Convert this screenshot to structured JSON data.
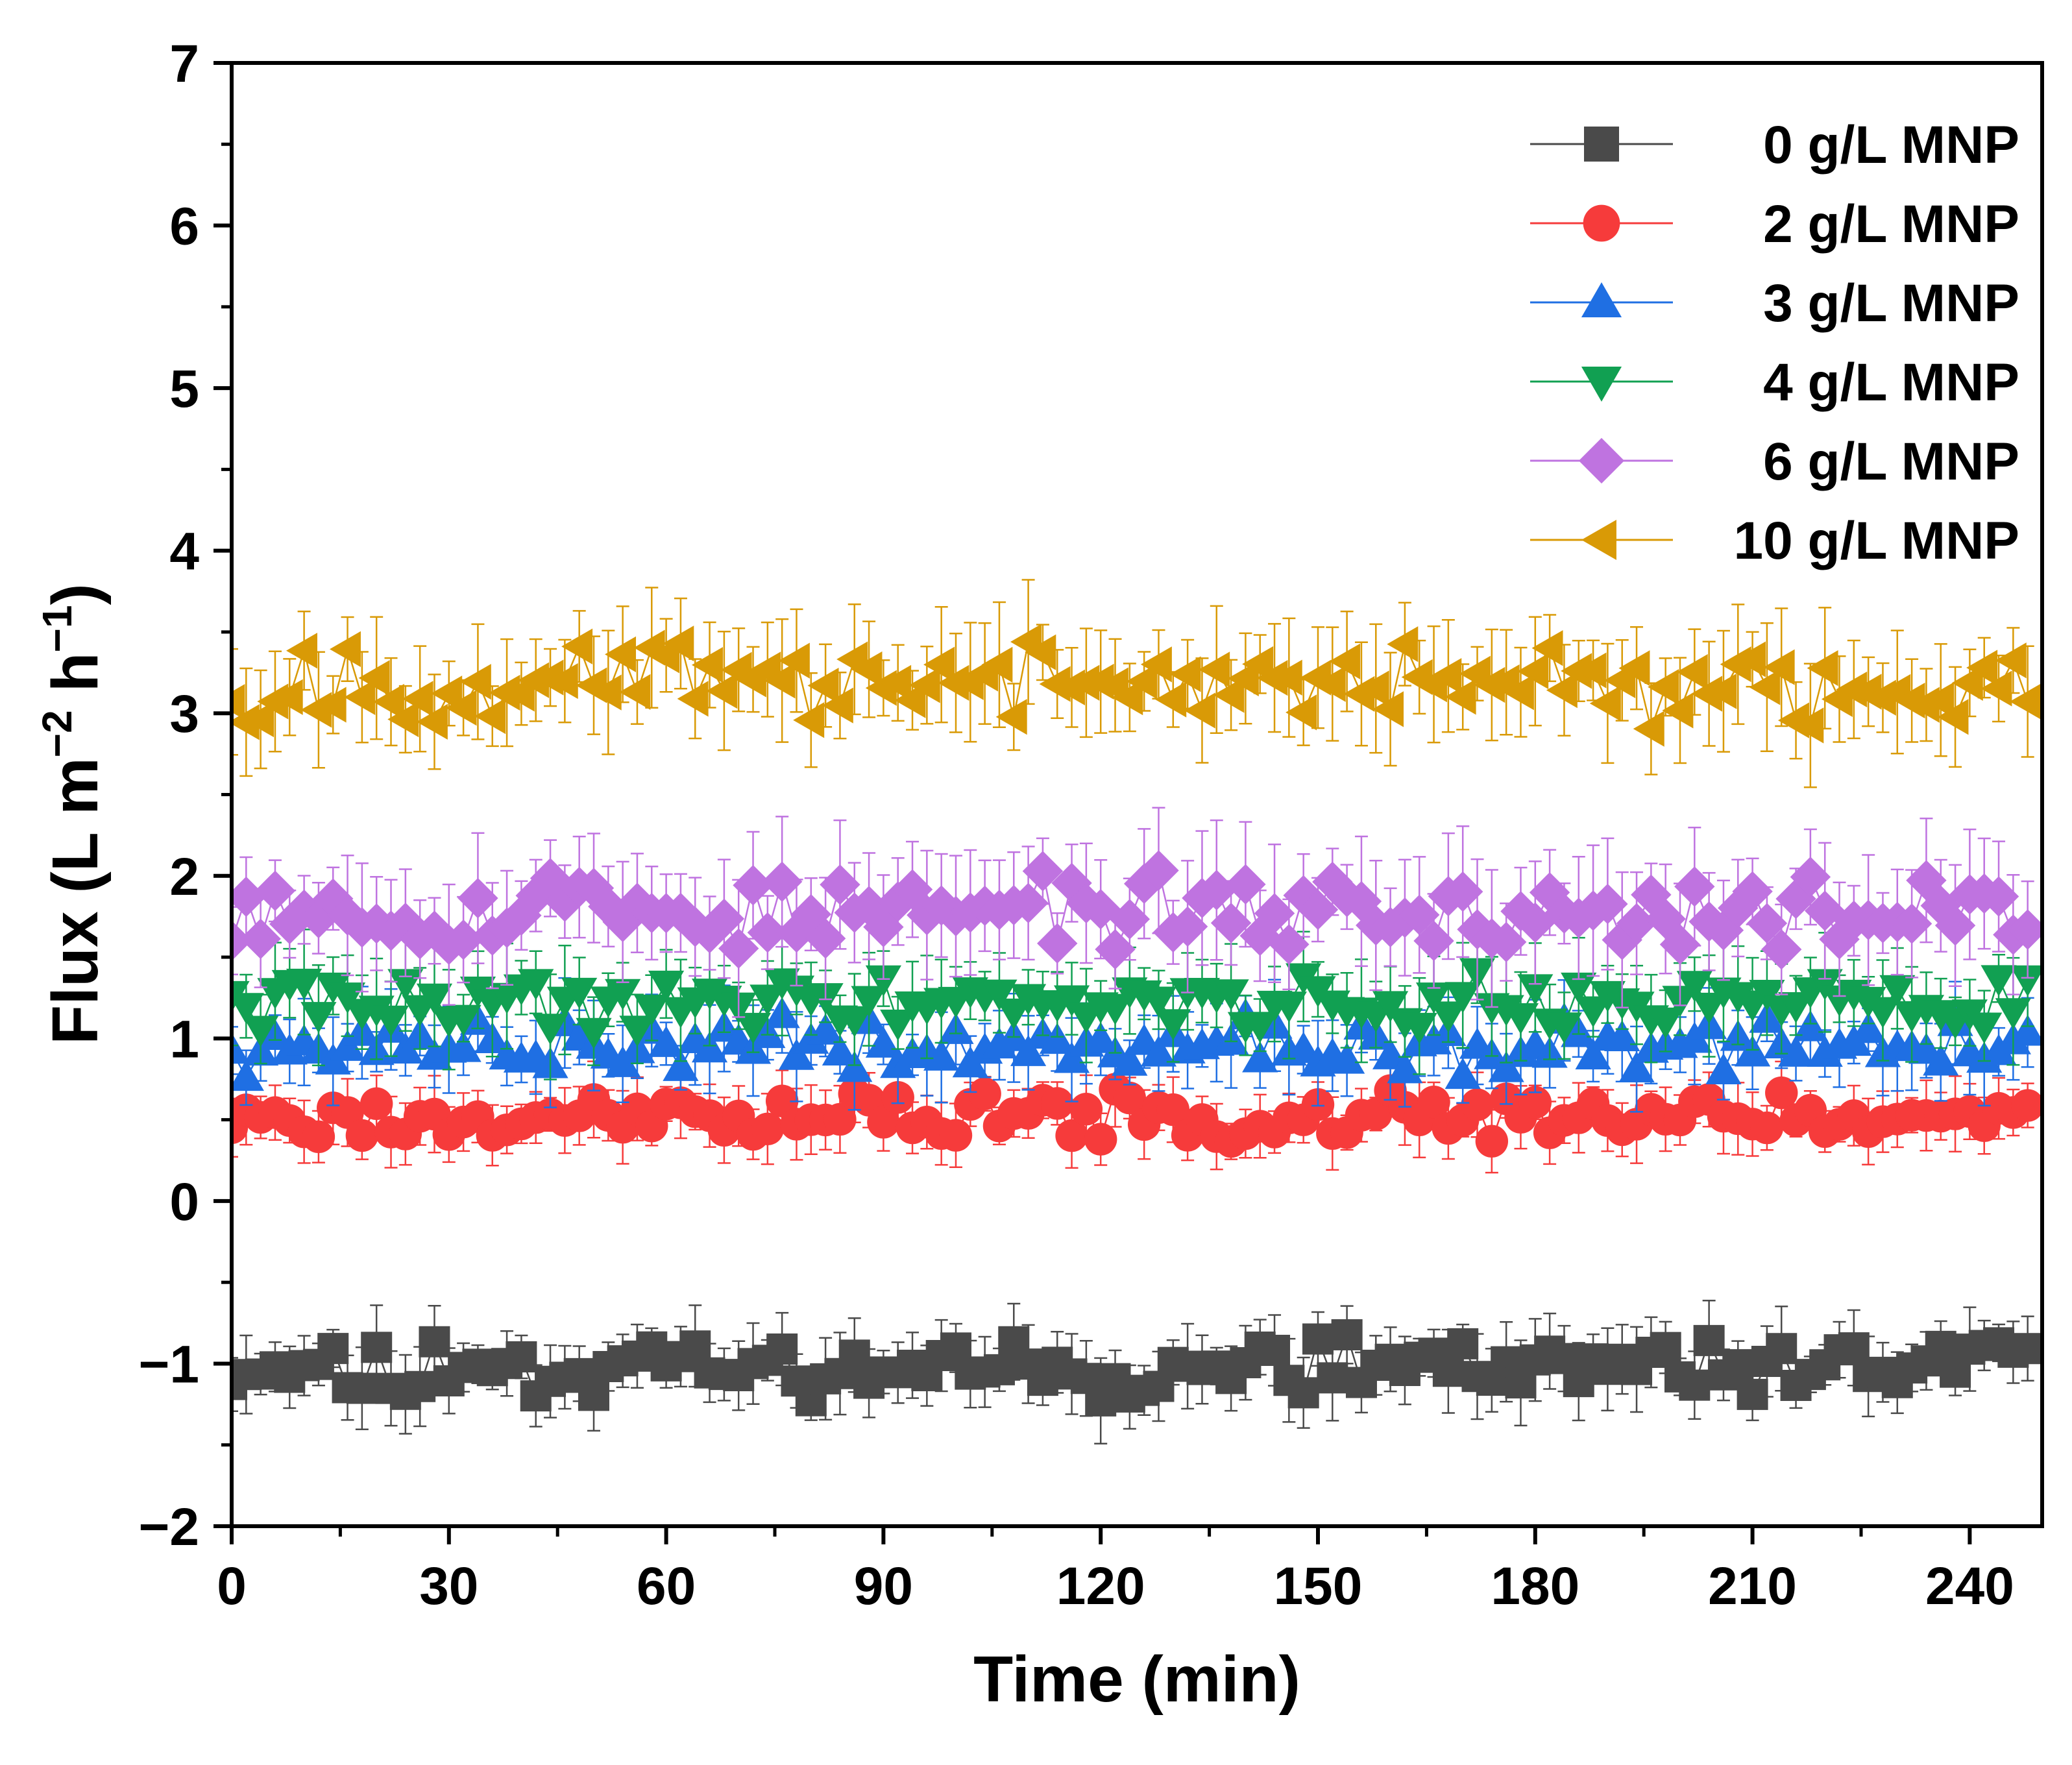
{
  "chart_data": {
    "type": "scatter",
    "title": "",
    "xlabel": "Time (min)",
    "ylabel_parts": [
      "Flux (L m",
      "−2",
      " h",
      "−1",
      ")"
    ],
    "xlim": [
      0,
      250
    ],
    "ylim": [
      -2,
      7
    ],
    "x_ticks": [
      0,
      30,
      60,
      90,
      120,
      150,
      180,
      210,
      240
    ],
    "x_tick_labels": [
      "0",
      "30",
      "60",
      "90",
      "120",
      "150",
      "180",
      "210",
      "240"
    ],
    "y_ticks": [
      -2,
      -1,
      0,
      1,
      2,
      3,
      4,
      5,
      6,
      7
    ],
    "y_tick_labels": [
      "−2",
      "−1",
      "0",
      "1",
      "2",
      "3",
      "4",
      "5",
      "6",
      "7"
    ],
    "legend_position": "top-right",
    "x_start": 0,
    "x_step": 2,
    "n_points": 125,
    "series": [
      {
        "name": "0 g/L MNP",
        "color": "#4a4a4a",
        "marker": "square",
        "mean": -1.02,
        "spread": 0.14,
        "error": 0.22,
        "seed": 11
      },
      {
        "name": "2 g/L MNP",
        "color": "#f63b3b",
        "marker": "circle",
        "mean": 0.52,
        "spread": 0.11,
        "error": 0.2,
        "seed": 23
      },
      {
        "name": "3 g/L MNP",
        "color": "#1f6fe3",
        "marker": "triangle-up",
        "mean": 0.95,
        "spread": 0.13,
        "error": 0.24,
        "seed": 37
      },
      {
        "name": "4 g/L MNP",
        "color": "#11a052",
        "marker": "triangle-down",
        "mean": 1.22,
        "spread": 0.13,
        "error": 0.28,
        "seed": 41
      },
      {
        "name": "6 g/L MNP",
        "color": "#bf73e0",
        "marker": "diamond",
        "mean": 1.78,
        "spread": 0.17,
        "error": 0.36,
        "seed": 53
      },
      {
        "name": "10 g/L MNP",
        "color": "#d99a06",
        "marker": "triangle-left",
        "mean": 3.18,
        "spread": 0.18,
        "error": 0.33,
        "seed": 67
      }
    ]
  }
}
